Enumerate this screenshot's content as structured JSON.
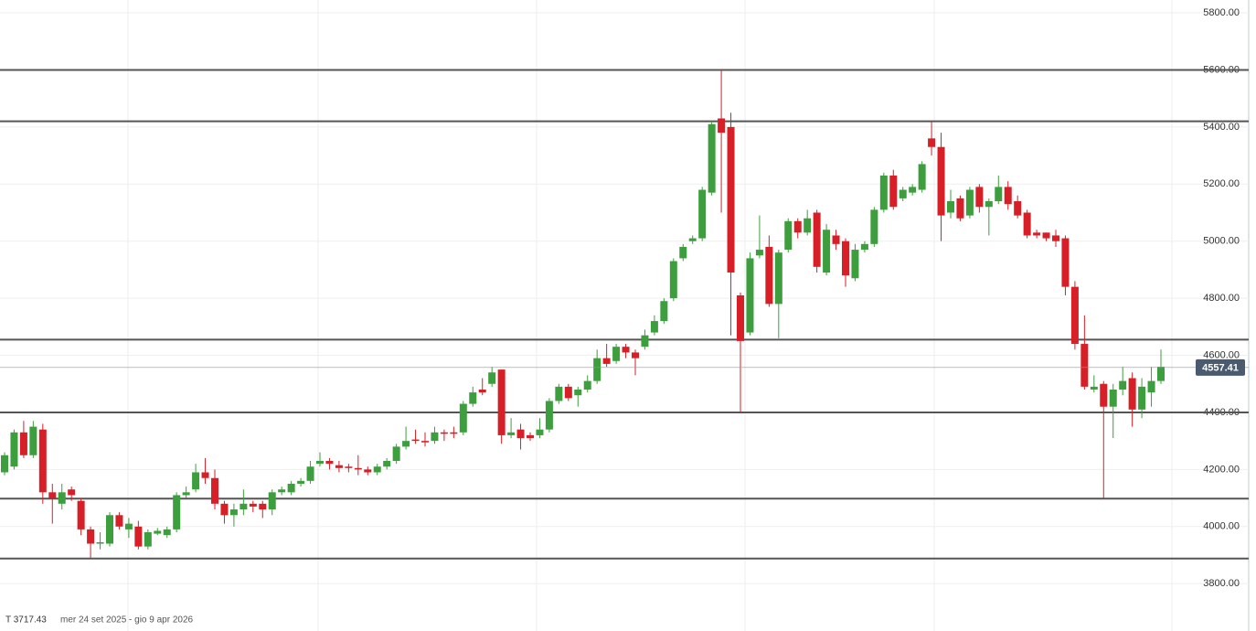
{
  "chart_data": {
    "type": "candlestick",
    "open": [
      4190,
      4210,
      4330,
      4250,
      4340,
      4120,
      4080,
      4130,
      4090,
      3990,
      3940,
      3940,
      4040,
      3990,
      4000,
      3930,
      3975,
      3970,
      3990,
      4110,
      4130,
      4190,
      4170,
      4080,
      4040,
      4060,
      4080,
      4080,
      4060,
      4120,
      4120,
      4150,
      4160,
      4220,
      4230,
      4215,
      4210,
      4205,
      4200,
      4190,
      4210,
      4230,
      4280,
      4305,
      4300,
      4300,
      4330,
      4330,
      4330,
      4430,
      4480,
      4500,
      4550,
      4320,
      4340,
      4320,
      4320,
      4340,
      4440,
      4490,
      4460,
      4480,
      4510,
      4590,
      4580,
      4630,
      4610,
      4630,
      4680,
      4720,
      4800,
      4940,
      5000,
      5010,
      5170,
      5430,
      5400,
      4810,
      4680,
      4950,
      4980,
      4780,
      4970,
      5070,
      5030,
      5100,
      4890,
      5020,
      5000,
      4870,
      4970,
      4990,
      5110,
      5230,
      5150,
      5170,
      5180,
      5360,
      5330,
      5100,
      5150,
      5090,
      5190,
      5120,
      5140,
      5190,
      5140,
      5100,
      5030,
      5030,
      5020,
      5010,
      4840,
      4640,
      4480,
      4500,
      4420,
      4480,
      4520,
      4410,
      4470,
      4510
    ],
    "high": [
      4260,
      4340,
      4370,
      4370,
      4360,
      4150,
      4150,
      4140,
      4100,
      4000,
      3980,
      4050,
      4050,
      4030,
      4020,
      3990,
      3995,
      4000,
      4120,
      4140,
      4220,
      4240,
      4200,
      4090,
      4080,
      4130,
      4090,
      4090,
      4130,
      4140,
      4160,
      4170,
      4230,
      4260,
      4240,
      4230,
      4220,
      4250,
      4210,
      4220,
      4240,
      4290,
      4350,
      4340,
      4330,
      4350,
      4340,
      4350,
      4440,
      4490,
      4520,
      4560,
      4550,
      4380,
      4360,
      4330,
      4380,
      4450,
      4500,
      4500,
      4490,
      4530,
      4620,
      4640,
      4640,
      4640,
      4620,
      4690,
      4740,
      4800,
      4940,
      4990,
      5020,
      5190,
      5420,
      5600,
      5450,
      4820,
      4960,
      5090,
      5020,
      4970,
      5080,
      5080,
      5110,
      5110,
      5060,
      5040,
      5010,
      4990,
      5000,
      5120,
      5240,
      5250,
      5190,
      5200,
      5280,
      5420,
      5380,
      5180,
      5160,
      5190,
      5200,
      5150,
      5230,
      5210,
      5160,
      5110,
      5040,
      5030,
      5040,
      5020,
      4860,
      4740,
      4530,
      4510,
      4500,
      4560,
      4540,
      4520,
      4560,
      4620
    ],
    "low": [
      4180,
      4200,
      4240,
      4240,
      4080,
      4010,
      4060,
      4090,
      3970,
      3890,
      3920,
      3930,
      3990,
      3960,
      3920,
      3920,
      3970,
      3960,
      3980,
      4100,
      4120,
      4150,
      4060,
      4010,
      4000,
      4040,
      4050,
      4030,
      4040,
      4110,
      4110,
      4140,
      4150,
      4210,
      4200,
      4190,
      4190,
      4180,
      4180,
      4180,
      4200,
      4220,
      4270,
      4290,
      4280,
      4290,
      4300,
      4310,
      4320,
      4420,
      4460,
      4490,
      4290,
      4310,
      4270,
      4300,
      4310,
      4330,
      4430,
      4440,
      4420,
      4470,
      4500,
      4560,
      4570,
      4590,
      4530,
      4620,
      4670,
      4710,
      4790,
      4930,
      4990,
      5000,
      5160,
      5100,
      4670,
      4400,
      4670,
      4940,
      4770,
      4660,
      4960,
      5010,
      5020,
      4890,
      4880,
      4970,
      4840,
      4860,
      4960,
      4980,
      5100,
      5110,
      5140,
      5160,
      5170,
      5300,
      5000,
      5080,
      5070,
      5080,
      5100,
      5020,
      5130,
      5110,
      5080,
      5010,
      5010,
      5000,
      4980,
      4810,
      4620,
      4480,
      4470,
      4100,
      4310,
      4460,
      4350,
      4380,
      4420,
      4500
    ],
    "close": [
      4250,
      4330,
      4250,
      4350,
      4120,
      4100,
      4120,
      4110,
      3990,
      3940,
      3945,
      4040,
      4000,
      4010,
      3930,
      3980,
      3985,
      3990,
      4110,
      4120,
      4190,
      4170,
      4080,
      4040,
      4060,
      4080,
      4070,
      4060,
      4120,
      4130,
      4150,
      4160,
      4210,
      4230,
      4220,
      4205,
      4205,
      4200,
      4190,
      4210,
      4230,
      4280,
      4300,
      4300,
      4295,
      4330,
      4325,
      4325,
      4430,
      4470,
      4470,
      4540,
      4320,
      4330,
      4310,
      4310,
      4340,
      4440,
      4490,
      4450,
      4480,
      4510,
      4590,
      4570,
      4630,
      4610,
      4590,
      4670,
      4720,
      4790,
      4930,
      4980,
      5010,
      5180,
      5410,
      5380,
      4890,
      4650,
      4940,
      4970,
      4780,
      4960,
      5070,
      5030,
      5080,
      4910,
      5040,
      4990,
      4880,
      4970,
      4990,
      5110,
      5230,
      5120,
      5180,
      5190,
      5270,
      5330,
      5090,
      5140,
      5080,
      5180,
      5120,
      5140,
      5190,
      5130,
      5090,
      5020,
      5020,
      5010,
      5000,
      4840,
      4640,
      4490,
      4490,
      4420,
      4480,
      4510,
      4410,
      4490,
      4510,
      4560
    ],
    "up_color": "#3d9e3d",
    "down_color": "#d71f27",
    "ylim": [
      3634,
      5845
    ],
    "yticks": [
      {
        "value": 3800,
        "label": "3800.00"
      },
      {
        "value": 4000,
        "label": "4000.00"
      },
      {
        "value": 4200,
        "label": "4200.00"
      },
      {
        "value": 4400,
        "label": "4400.00"
      },
      {
        "value": 4600,
        "label": "4600.00"
      },
      {
        "value": 4800,
        "label": "4800.00"
      },
      {
        "value": 5000,
        "label": "5000.00"
      },
      {
        "value": 5200,
        "label": "5200.00"
      },
      {
        "value": 5400,
        "label": "5400.00"
      },
      {
        "value": 5600,
        "label": "5600.00"
      },
      {
        "value": 5800,
        "label": "5800.00"
      }
    ],
    "levels": [
      5600,
      5420,
      4655,
      4400,
      4098,
      3888
    ],
    "last_price": 4557.41,
    "crosshair_label": "T 3717.43",
    "range_label": "mer 24 set 2025 - gio 9 apr 2026",
    "grid": true
  }
}
